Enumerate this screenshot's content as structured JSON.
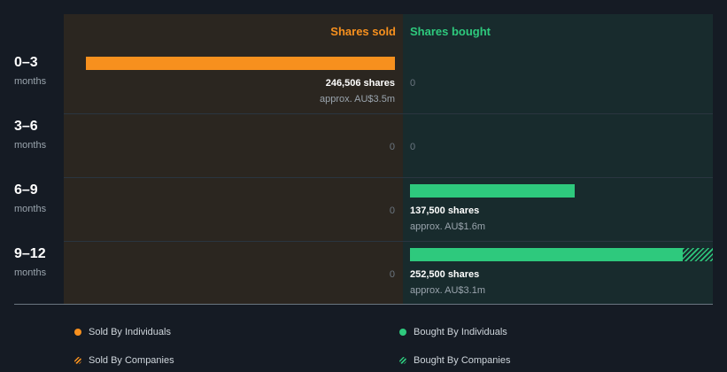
{
  "chart_data": {
    "type": "bar",
    "title": "",
    "columns": {
      "sold": "Shares sold",
      "bought": "Shares bought"
    },
    "max_value": 252500,
    "periods": [
      {
        "label": "0–3",
        "unit": "months",
        "sold": {
          "shares": 246506,
          "text": "246,506 shares",
          "approx": "approx. AU$3.5m",
          "company_fraction": 0
        },
        "bought": {
          "shares": 0,
          "text": "0"
        }
      },
      {
        "label": "3–6",
        "unit": "months",
        "sold": {
          "shares": 0,
          "text": "0"
        },
        "bought": {
          "shares": 0,
          "text": "0"
        }
      },
      {
        "label": "6–9",
        "unit": "months",
        "sold": {
          "shares": 0,
          "text": "0"
        },
        "bought": {
          "shares": 137500,
          "text": "137,500 shares",
          "approx": "approx. AU$1.6m",
          "company_fraction": 0
        }
      },
      {
        "label": "9–12",
        "unit": "months",
        "sold": {
          "shares": 0,
          "text": "0"
        },
        "bought": {
          "shares": 252500,
          "text": "252,500 shares",
          "approx": "approx. AU$3.1m",
          "company_fraction": 0.1
        }
      }
    ],
    "legend": [
      {
        "label": "Sold By Individuals",
        "color": "#f7901e",
        "style": "solid"
      },
      {
        "label": "Bought By Individuals",
        "color": "#2ec97d",
        "style": "solid"
      },
      {
        "label": "Sold By Companies",
        "color": "#f7901e",
        "style": "hatched"
      },
      {
        "label": "Bought By Companies",
        "color": "#2ec97d",
        "style": "hatched"
      }
    ]
  },
  "colors": {
    "sold": "#f7901e",
    "bought": "#2ec97d"
  }
}
